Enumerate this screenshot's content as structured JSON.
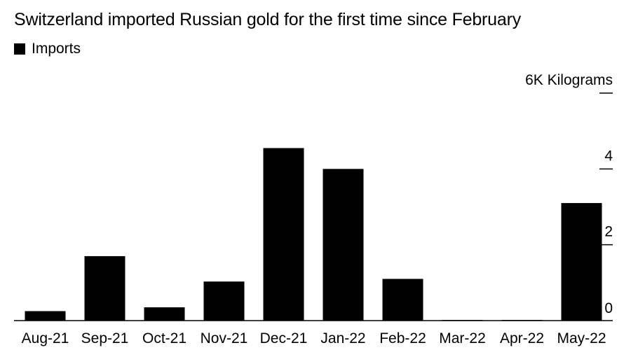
{
  "title": "Switzerland imported Russian gold for the first time since February",
  "legend": {
    "label": "Imports",
    "color": "#000000"
  },
  "y_unit_label": "6K Kilograms",
  "chart_data": {
    "type": "bar",
    "title": "Switzerland imported Russian gold for the first time since February",
    "categories": [
      "Aug-21",
      "Sep-21",
      "Oct-21",
      "Nov-21",
      "Dec-21",
      "Jan-22",
      "Feb-22",
      "Mar-22",
      "Apr-22",
      "May-22"
    ],
    "series": [
      {
        "name": "Imports",
        "color": "#000000",
        "values": [
          0.25,
          1.7,
          0.35,
          1.03,
          4.55,
          4.0,
          1.1,
          0,
          0,
          3.1
        ]
      }
    ],
    "ylabel": "Kilograms",
    "ylim": [
      0,
      6
    ],
    "yticks": [
      0,
      2,
      4,
      6
    ],
    "ytick_labels": [
      "0",
      "2",
      "4",
      "6K Kilograms"
    ],
    "grid": false,
    "legend_position": "top-left"
  }
}
